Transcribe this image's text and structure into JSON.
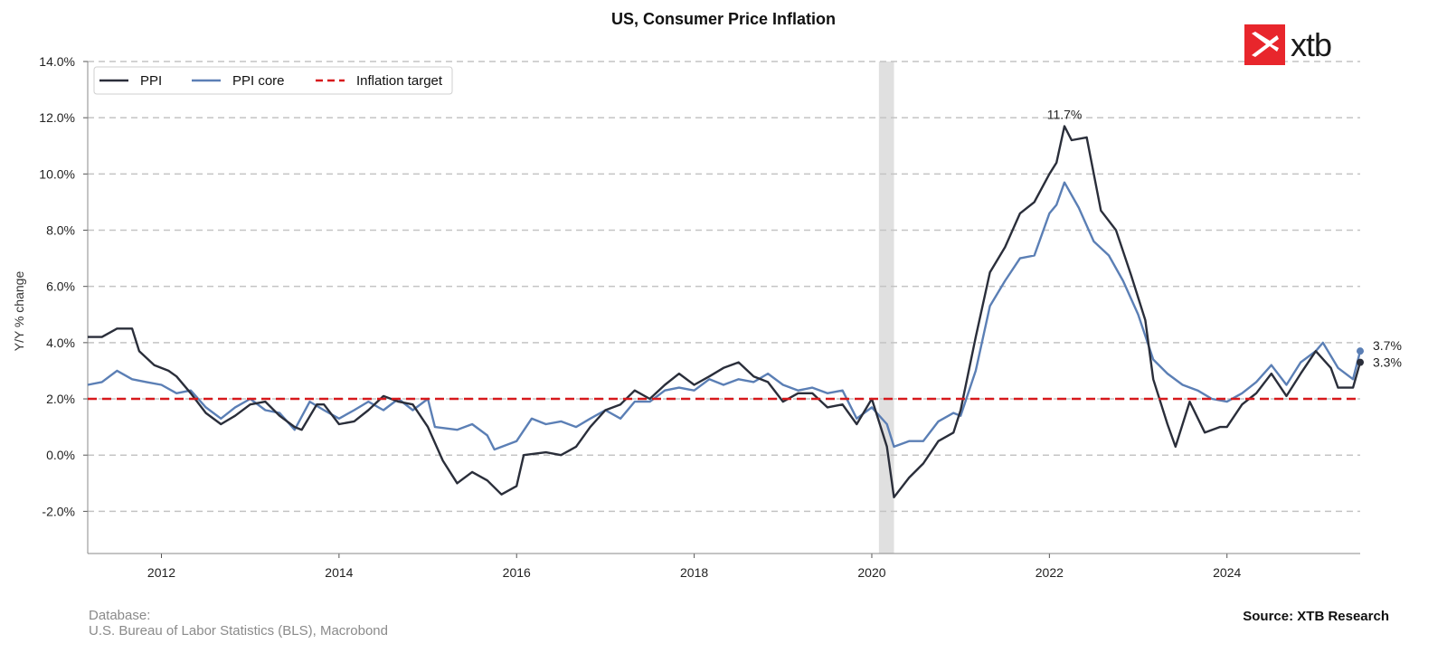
{
  "logo": {
    "text": "xtb",
    "icon": "xtb-logo-icon",
    "color": "#e8262c"
  },
  "footer": {
    "database_label": "Database:",
    "database_value": "U.S. Bureau of Labor Statistics (BLS), Macrobond",
    "source": "Source: XTB Research"
  },
  "chart_data": {
    "type": "line",
    "title": "US, Consumer Price Inflation",
    "xlabel": "",
    "ylabel": "Y/Y % change",
    "x_range": [
      2011.17,
      2025.5
    ],
    "ylim": [
      -3.5,
      14.0
    ],
    "x_ticks": [
      2012,
      2014,
      2016,
      2018,
      2020,
      2022,
      2024
    ],
    "x_tick_labels": [
      "2012",
      "2014",
      "2016",
      "2018",
      "2020",
      "2022",
      "2024"
    ],
    "y_ticks": [
      -2,
      0,
      2,
      4,
      6,
      8,
      10,
      12,
      14
    ],
    "y_tick_labels": [
      "-2.0%",
      "0.0%",
      "2.0%",
      "4.0%",
      "6.0%",
      "8.0%",
      "10.0%",
      "12.0%",
      "14.0%"
    ],
    "grid": "horizontal dashed",
    "legend_position": "top-left",
    "shaded_region": {
      "x_start": 2020.08,
      "x_end": 2020.25,
      "color": "#e0e0e0"
    },
    "series": [
      {
        "name": "PPI",
        "color": "#2a2e3a",
        "points": [
          [
            2011.17,
            4.2
          ],
          [
            2011.33,
            4.2
          ],
          [
            2011.5,
            4.5
          ],
          [
            2011.67,
            4.5
          ],
          [
            2011.75,
            3.7
          ],
          [
            2011.92,
            3.2
          ],
          [
            2012.08,
            3.0
          ],
          [
            2012.17,
            2.8
          ],
          [
            2012.33,
            2.2
          ],
          [
            2012.5,
            1.5
          ],
          [
            2012.67,
            1.1
          ],
          [
            2012.83,
            1.4
          ],
          [
            2013.0,
            1.8
          ],
          [
            2013.17,
            1.9
          ],
          [
            2013.33,
            1.4
          ],
          [
            2013.5,
            1.0
          ],
          [
            2013.58,
            0.9
          ],
          [
            2013.75,
            1.8
          ],
          [
            2013.83,
            1.8
          ],
          [
            2014.0,
            1.1
          ],
          [
            2014.17,
            1.2
          ],
          [
            2014.33,
            1.6
          ],
          [
            2014.5,
            2.1
          ],
          [
            2014.67,
            1.9
          ],
          [
            2014.83,
            1.8
          ],
          [
            2015.0,
            1.0
          ],
          [
            2015.17,
            -0.2
          ],
          [
            2015.33,
            -1.0
          ],
          [
            2015.5,
            -0.6
          ],
          [
            2015.67,
            -0.9
          ],
          [
            2015.83,
            -1.4
          ],
          [
            2016.0,
            -1.1
          ],
          [
            2016.08,
            0.0
          ],
          [
            2016.33,
            0.1
          ],
          [
            2016.5,
            0.0
          ],
          [
            2016.67,
            0.3
          ],
          [
            2016.83,
            1.0
          ],
          [
            2017.0,
            1.6
          ],
          [
            2017.17,
            1.8
          ],
          [
            2017.33,
            2.3
          ],
          [
            2017.5,
            2.0
          ],
          [
            2017.67,
            2.5
          ],
          [
            2017.83,
            2.9
          ],
          [
            2018.0,
            2.5
          ],
          [
            2018.17,
            2.8
          ],
          [
            2018.33,
            3.1
          ],
          [
            2018.5,
            3.3
          ],
          [
            2018.67,
            2.8
          ],
          [
            2018.83,
            2.6
          ],
          [
            2019.0,
            1.9
          ],
          [
            2019.17,
            2.2
          ],
          [
            2019.33,
            2.2
          ],
          [
            2019.5,
            1.7
          ],
          [
            2019.67,
            1.8
          ],
          [
            2019.83,
            1.1
          ],
          [
            2020.0,
            2.0
          ],
          [
            2020.17,
            0.3
          ],
          [
            2020.25,
            -1.5
          ],
          [
            2020.42,
            -0.8
          ],
          [
            2020.58,
            -0.3
          ],
          [
            2020.75,
            0.5
          ],
          [
            2020.92,
            0.8
          ],
          [
            2021.0,
            1.6
          ],
          [
            2021.17,
            4.2
          ],
          [
            2021.33,
            6.5
          ],
          [
            2021.5,
            7.4
          ],
          [
            2021.67,
            8.6
          ],
          [
            2021.83,
            9.0
          ],
          [
            2022.0,
            10.0
          ],
          [
            2022.08,
            10.4
          ],
          [
            2022.17,
            11.7
          ],
          [
            2022.25,
            11.2
          ],
          [
            2022.42,
            11.3
          ],
          [
            2022.58,
            8.7
          ],
          [
            2022.75,
            8.0
          ],
          [
            2022.92,
            6.4
          ],
          [
            2023.08,
            4.8
          ],
          [
            2023.17,
            2.7
          ],
          [
            2023.33,
            1.1
          ],
          [
            2023.42,
            0.3
          ],
          [
            2023.58,
            1.9
          ],
          [
            2023.75,
            0.8
          ],
          [
            2023.92,
            1.0
          ],
          [
            2024.0,
            1.0
          ],
          [
            2024.17,
            1.8
          ],
          [
            2024.33,
            2.2
          ],
          [
            2024.5,
            2.9
          ],
          [
            2024.67,
            2.1
          ],
          [
            2024.83,
            2.9
          ],
          [
            2025.0,
            3.7
          ],
          [
            2025.17,
            3.1
          ],
          [
            2025.25,
            2.4
          ],
          [
            2025.42,
            2.4
          ],
          [
            2025.5,
            3.3
          ]
        ]
      },
      {
        "name": "PPI core",
        "color": "#5b7fb5",
        "points": [
          [
            2011.17,
            2.5
          ],
          [
            2011.33,
            2.6
          ],
          [
            2011.5,
            3.0
          ],
          [
            2011.67,
            2.7
          ],
          [
            2011.83,
            2.6
          ],
          [
            2012.0,
            2.5
          ],
          [
            2012.17,
            2.2
          ],
          [
            2012.33,
            2.3
          ],
          [
            2012.5,
            1.7
          ],
          [
            2012.67,
            1.3
          ],
          [
            2012.83,
            1.7
          ],
          [
            2013.0,
            2.0
          ],
          [
            2013.17,
            1.6
          ],
          [
            2013.33,
            1.5
          ],
          [
            2013.5,
            0.9
          ],
          [
            2013.67,
            1.9
          ],
          [
            2013.83,
            1.6
          ],
          [
            2014.0,
            1.3
          ],
          [
            2014.17,
            1.6
          ],
          [
            2014.33,
            1.9
          ],
          [
            2014.5,
            1.6
          ],
          [
            2014.67,
            2.0
          ],
          [
            2014.83,
            1.6
          ],
          [
            2015.0,
            2.0
          ],
          [
            2015.08,
            1.0
          ],
          [
            2015.33,
            0.9
          ],
          [
            2015.5,
            1.1
          ],
          [
            2015.67,
            0.7
          ],
          [
            2015.75,
            0.2
          ],
          [
            2016.0,
            0.5
          ],
          [
            2016.17,
            1.3
          ],
          [
            2016.33,
            1.1
          ],
          [
            2016.5,
            1.2
          ],
          [
            2016.67,
            1.0
          ],
          [
            2016.83,
            1.3
          ],
          [
            2017.0,
            1.6
          ],
          [
            2017.17,
            1.3
          ],
          [
            2017.33,
            1.9
          ],
          [
            2017.5,
            1.9
          ],
          [
            2017.67,
            2.3
          ],
          [
            2017.83,
            2.4
          ],
          [
            2018.0,
            2.3
          ],
          [
            2018.17,
            2.7
          ],
          [
            2018.33,
            2.5
          ],
          [
            2018.5,
            2.7
          ],
          [
            2018.67,
            2.6
          ],
          [
            2018.83,
            2.9
          ],
          [
            2019.0,
            2.5
          ],
          [
            2019.17,
            2.3
          ],
          [
            2019.33,
            2.4
          ],
          [
            2019.5,
            2.2
          ],
          [
            2019.67,
            2.3
          ],
          [
            2019.83,
            1.3
          ],
          [
            2020.0,
            1.7
          ],
          [
            2020.17,
            1.1
          ],
          [
            2020.25,
            0.3
          ],
          [
            2020.42,
            0.5
          ],
          [
            2020.58,
            0.5
          ],
          [
            2020.75,
            1.2
          ],
          [
            2020.92,
            1.5
          ],
          [
            2021.0,
            1.4
          ],
          [
            2021.17,
            3.0
          ],
          [
            2021.33,
            5.3
          ],
          [
            2021.5,
            6.2
          ],
          [
            2021.67,
            7.0
          ],
          [
            2021.83,
            7.1
          ],
          [
            2022.0,
            8.6
          ],
          [
            2022.08,
            8.9
          ],
          [
            2022.17,
            9.7
          ],
          [
            2022.33,
            8.8
          ],
          [
            2022.5,
            7.6
          ],
          [
            2022.67,
            7.1
          ],
          [
            2022.83,
            6.2
          ],
          [
            2023.0,
            5.0
          ],
          [
            2023.17,
            3.4
          ],
          [
            2023.33,
            2.9
          ],
          [
            2023.5,
            2.5
          ],
          [
            2023.67,
            2.3
          ],
          [
            2023.83,
            2.0
          ],
          [
            2024.0,
            1.9
          ],
          [
            2024.17,
            2.2
          ],
          [
            2024.33,
            2.6
          ],
          [
            2024.5,
            3.2
          ],
          [
            2024.67,
            2.5
          ],
          [
            2024.83,
            3.3
          ],
          [
            2025.0,
            3.7
          ],
          [
            2025.08,
            4.0
          ],
          [
            2025.25,
            3.1
          ],
          [
            2025.42,
            2.7
          ],
          [
            2025.5,
            3.7
          ]
        ]
      },
      {
        "name": "Inflation target",
        "color": "#d7191c",
        "dashed": true,
        "points": [
          [
            2011.17,
            2.0
          ],
          [
            2025.5,
            2.0
          ]
        ]
      }
    ],
    "annotations": [
      {
        "text": "11.7%",
        "x": 2022.17,
        "y": 11.7,
        "position": "above"
      },
      {
        "text": "3.7%",
        "x": 2025.5,
        "y": 3.7,
        "position": "right"
      },
      {
        "text": "3.3%",
        "x": 2025.5,
        "y": 3.3,
        "position": "right"
      }
    ]
  }
}
